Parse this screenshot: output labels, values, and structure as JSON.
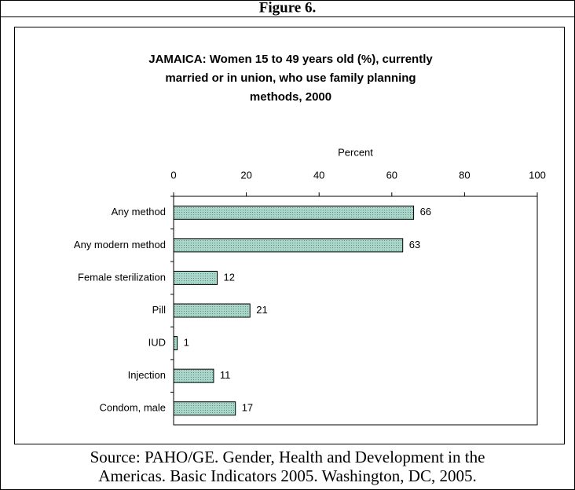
{
  "figure_label": "Figure 6.",
  "source": [
    "Source: PAHO/GE. Gender, Health and Development in the",
    "Americas. Basic Indicators 2005. Washington, DC, 2005."
  ],
  "chart_data": {
    "type": "hbar",
    "title": [
      "JAMAICA: Women 15 to 49 years old (%), currently",
      "married or in union, who use family planning",
      "methods, 2000"
    ],
    "xlabel": "Percent",
    "categories": [
      "Any method",
      "Any modern method",
      "Female sterilization",
      "Pill",
      "IUD",
      "Injection",
      "Condom, male"
    ],
    "values": [
      66,
      63,
      12,
      21,
      1,
      11,
      17
    ],
    "color": "#a9d6c8",
    "xlim": [
      0,
      100
    ],
    "xticks": [
      0,
      20,
      40,
      60,
      80,
      100
    ]
  }
}
